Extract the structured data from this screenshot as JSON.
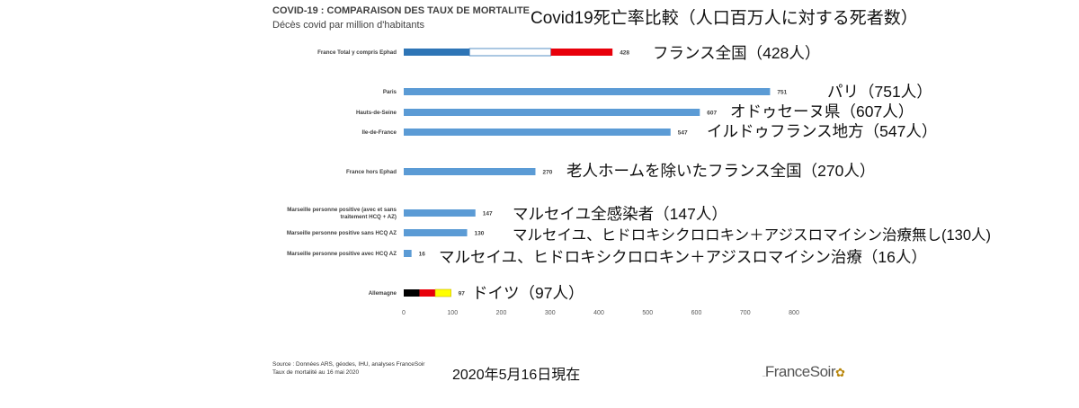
{
  "header": {
    "title": "COVID-19 : COMPARAISON DES TAUX DE MORTALITE",
    "subtitle": "Décès covid par million d'habitants",
    "title_jp": "Covid19死亡率比較（人口百万人に対する死者数）"
  },
  "footer": {
    "source_line1": "Source : Données ARS, géodes, IHU, analyses FranceSoir",
    "source_line2": "Taux de mortalité au 16 mai 2020",
    "date_jp": "2020年5月16日現在",
    "logo_prefix": "_",
    "logo_text": "FranceSoir",
    "logo_mark": "✿"
  },
  "colors": {
    "bar": "#5b9bd5",
    "france_blue": "#2e75b6",
    "france_white": "#ffffff",
    "france_red": "#e8000b",
    "germany_black": "#000000",
    "germany_red": "#e8000b",
    "germany_yellow": "#ffff00",
    "axis_text": "#595959"
  },
  "chart_data": {
    "type": "bar",
    "orientation": "horizontal",
    "categories": [
      "France Total y compris Ephad",
      "Paris",
      "Hauts-de-Seine",
      "Ile-de-France",
      "France hors Ephad",
      "Marseille personne positive (avec et sans traitement HCQ + AZ)",
      "Marseille personne positive sans HCQ AZ",
      "Marseille personne positive avec HCQ AZ",
      "Allemagne"
    ],
    "values": [
      428,
      751,
      607,
      547,
      270,
      147,
      130,
      16,
      97
    ],
    "data_labels": [
      "428",
      "751",
      "607",
      "547",
      "270",
      "147",
      "130",
      "16",
      "97"
    ],
    "fill_style": [
      "flag-france",
      "solid",
      "solid",
      "solid",
      "solid",
      "solid",
      "solid",
      "solid",
      "flag-germany"
    ],
    "xlim": [
      0,
      800
    ],
    "x_ticks": [
      0,
      100,
      200,
      300,
      400,
      500,
      600,
      700,
      800
    ],
    "grid": false,
    "annotations_jp": [
      "フランス全国（428人）",
      "パリ（751人）",
      "オドゥセーヌ県（607人）",
      "イルドゥフランス地方（547人）",
      "老人ホームを除いたフランス全国（270人）",
      "マルセイユ全感染者（147人）",
      "マルセイユ、ヒドロキシクロロキン＋アジスロマイシン治療無し(130人)",
      "マルセイユ、ヒドロキシクロロキン＋アジスロマイシン治療（16人）",
      "ドイツ（97人）"
    ]
  }
}
